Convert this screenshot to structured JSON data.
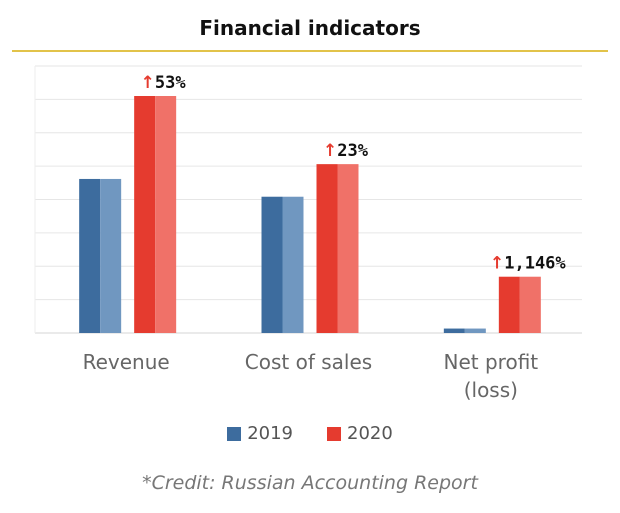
{
  "chart_data": {
    "type": "bar",
    "title": "Financial indicators",
    "categories": [
      "Revenue",
      "Cost of sales",
      "Net profit (loss)"
    ],
    "category_lines": [
      [
        "Revenue"
      ],
      [
        "Cost of sales"
      ],
      [
        "Net profit",
        "(loss)"
      ]
    ],
    "series": [
      {
        "name": "2019",
        "values": [
          52,
          46,
          1.5
        ],
        "color": "#3d6c9e",
        "color_light": "#7097c0"
      },
      {
        "name": "2020",
        "values": [
          80,
          57,
          19
        ],
        "color": "#e53b2f",
        "color_light": "#f07168"
      }
    ],
    "annotations": [
      "53%",
      "23%",
      "1,146%"
    ],
    "annotation_arrow": "↑",
    "annotation_arrow_color": "#e53b2f",
    "ylim": [
      0,
      80
    ],
    "grid": true,
    "legend_position": "bottom"
  },
  "credit": "*Credit: Russian Accounting Report"
}
